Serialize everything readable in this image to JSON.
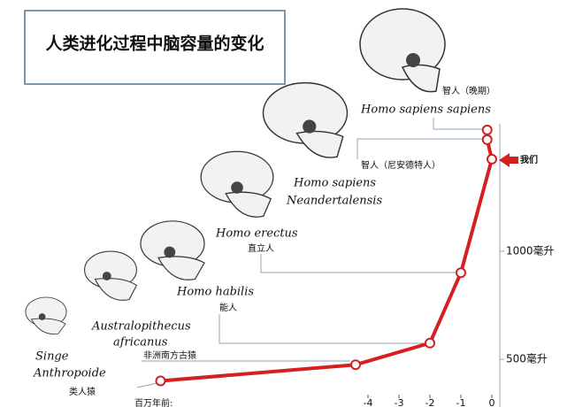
{
  "chart_data": {
    "type": "line",
    "title": "人类进化过程中脑容量的变化",
    "x": [
      -10.7,
      -4.4,
      -2,
      -1,
      0,
      -0.15,
      -0.15
    ],
    "values": [
      400,
      475,
      575,
      900,
      1425,
      1515,
      1560
    ],
    "color": "#d42020",
    "xlim": [
      -11,
      0
    ],
    "xticks": [
      -4,
      -3,
      -2,
      -1,
      0
    ],
    "x_label": "百万年前:",
    "ylim": [
      300,
      1670
    ],
    "yticks": [
      {
        "value": 500,
        "label": "500毫升"
      },
      {
        "value": 1000,
        "label": "1000毫升"
      }
    ],
    "annotations": [
      "Singe",
      "Anthropoide",
      "类人猿",
      "Australopithecus",
      "africanus",
      "非洲南方古猿",
      "Homo habilis",
      "能人",
      "Homo erectus",
      "直立人",
      "Homo sapiens",
      "Neandertalensis",
      "智人（尼安德特人）",
      "智人（晚期）",
      "Homo sapiens sapiens",
      "我们"
    ]
  }
}
